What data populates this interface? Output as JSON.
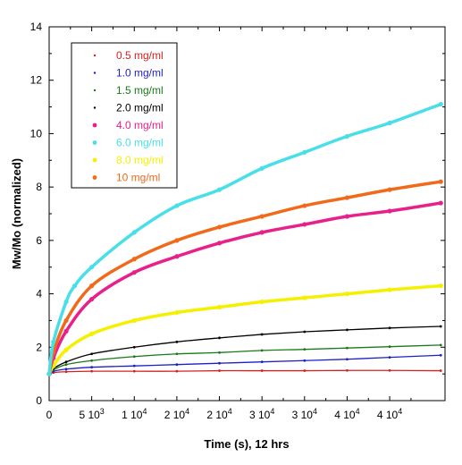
{
  "chart_data": {
    "type": "scatter",
    "xlabel": "Time (s), 12 hrs",
    "ylabel": "Mw/Mo (normalized)",
    "xlim": [
      0,
      46500
    ],
    "ylim": [
      0,
      14
    ],
    "x_ticks": [
      {
        "value": 0,
        "label": "0"
      },
      {
        "value": 5000,
        "label": "5 10",
        "exp": "3"
      },
      {
        "value": 10000,
        "label": "1 10",
        "exp": "4"
      },
      {
        "value": 15000,
        "label": "2 10",
        "exp": "4"
      },
      {
        "value": 20000,
        "label": "2 10",
        "exp": "4"
      },
      {
        "value": 25000,
        "label": "3 10",
        "exp": "4"
      },
      {
        "value": 30000,
        "label": "3 10",
        "exp": "4"
      },
      {
        "value": 35000,
        "label": "4 10",
        "exp": "4"
      },
      {
        "value": 40000,
        "label": "4 10",
        "exp": "4"
      }
    ],
    "y_ticks": [
      0,
      2,
      4,
      6,
      8,
      10,
      12,
      14
    ],
    "grid": false,
    "legend_position": "top-left",
    "series": [
      {
        "name": "0.5 mg/ml",
        "color": "#d62020",
        "marker": "dot",
        "x": [
          0,
          500,
          2000,
          5000,
          10000,
          15000,
          20000,
          25000,
          30000,
          35000,
          40000,
          46000
        ],
        "y": [
          1.0,
          1.05,
          1.08,
          1.1,
          1.1,
          1.1,
          1.12,
          1.12,
          1.12,
          1.13,
          1.13,
          1.12
        ]
      },
      {
        "name": "1.0 mg/ml",
        "color": "#1f1fc8",
        "marker": "dot",
        "x": [
          0,
          500,
          2000,
          5000,
          10000,
          15000,
          20000,
          25000,
          30000,
          35000,
          40000,
          46000
        ],
        "y": [
          1.0,
          1.1,
          1.18,
          1.25,
          1.3,
          1.35,
          1.4,
          1.45,
          1.5,
          1.55,
          1.62,
          1.7
        ]
      },
      {
        "name": "1.5 mg/ml",
        "color": "#1a7a1a",
        "marker": "dot",
        "x": [
          0,
          500,
          2000,
          5000,
          10000,
          15000,
          20000,
          25000,
          30000,
          35000,
          40000,
          46000
        ],
        "y": [
          1.0,
          1.15,
          1.35,
          1.5,
          1.65,
          1.75,
          1.8,
          1.88,
          1.92,
          1.97,
          2.02,
          2.08
        ]
      },
      {
        "name": "2.0 mg/ml",
        "color": "#000000",
        "marker": "dot",
        "x": [
          0,
          500,
          2000,
          5000,
          10000,
          15000,
          20000,
          25000,
          30000,
          35000,
          40000,
          46000
        ],
        "y": [
          1.0,
          1.2,
          1.45,
          1.75,
          2.0,
          2.2,
          2.35,
          2.48,
          2.58,
          2.65,
          2.72,
          2.78
        ]
      },
      {
        "name": "4.0 mg/ml",
        "color": "#e8208a",
        "marker": "dot",
        "x": [
          0,
          500,
          2000,
          5000,
          10000,
          15000,
          20000,
          25000,
          30000,
          35000,
          40000,
          46000
        ],
        "y": [
          1.0,
          1.6,
          2.6,
          3.8,
          4.8,
          5.4,
          5.9,
          6.3,
          6.6,
          6.9,
          7.1,
          7.4
        ]
      },
      {
        "name": "6.0 mg/ml",
        "color": "#48dfe8",
        "marker": "dot",
        "x": [
          0,
          500,
          2000,
          3000,
          5000,
          10000,
          15000,
          20000,
          25000,
          30000,
          35000,
          40000,
          46000
        ],
        "y": [
          1.0,
          2.2,
          3.7,
          4.3,
          5.0,
          6.3,
          7.3,
          7.9,
          8.7,
          9.3,
          9.9,
          10.4,
          11.1
        ]
      },
      {
        "name": "8.0 mg/ml",
        "color": "#f5f000",
        "marker": "dot",
        "x": [
          0,
          500,
          2000,
          5000,
          10000,
          15000,
          20000,
          25000,
          30000,
          35000,
          40000,
          46000
        ],
        "y": [
          1.0,
          1.3,
          1.9,
          2.5,
          3.0,
          3.3,
          3.5,
          3.7,
          3.85,
          4.0,
          4.15,
          4.3
        ]
      },
      {
        "name": "10 mg/ml",
        "color": "#f06a1a",
        "marker": "dot",
        "x": [
          0,
          500,
          2000,
          5000,
          10000,
          15000,
          20000,
          25000,
          30000,
          35000,
          40000,
          46000
        ],
        "y": [
          1.0,
          1.8,
          3.0,
          4.3,
          5.3,
          6.0,
          6.5,
          6.9,
          7.3,
          7.6,
          7.9,
          8.2
        ]
      }
    ]
  }
}
